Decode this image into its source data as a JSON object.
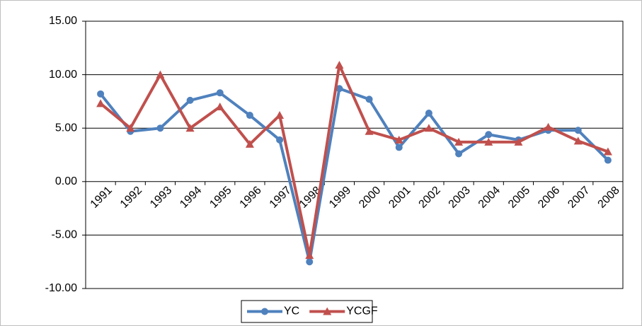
{
  "chart_data": {
    "type": "line",
    "categories": [
      "1991",
      "1992",
      "1993",
      "1994",
      "1995",
      "1996",
      "1997",
      "1998",
      "1999",
      "2000",
      "2001",
      "2002",
      "2003",
      "2004",
      "2005",
      "2006",
      "2007",
      "2008"
    ],
    "series": [
      {
        "name": "YC",
        "color": "#4f81bd",
        "marker": "circle",
        "values": [
          8.2,
          4.7,
          5.0,
          7.6,
          8.3,
          6.2,
          3.9,
          -7.5,
          8.7,
          7.7,
          3.2,
          6.4,
          2.6,
          4.4,
          3.9,
          4.8,
          4.8,
          2.0
        ]
      },
      {
        "name": "YCGF",
        "color": "#c0504d",
        "marker": "triangle",
        "values": [
          7.3,
          5.0,
          10.0,
          5.0,
          7.0,
          3.5,
          6.2,
          -6.9,
          10.9,
          4.7,
          3.9,
          5.0,
          3.7,
          3.7,
          3.7,
          5.1,
          3.8,
          2.8
        ]
      }
    ],
    "ylim": [
      -10,
      15
    ],
    "yticks": [
      {
        "value": -10,
        "label": "-10.00"
      },
      {
        "value": -5,
        "label": "-5.00"
      },
      {
        "value": 0,
        "label": "0.00"
      },
      {
        "value": 5,
        "label": "5.00"
      },
      {
        "value": 10,
        "label": "10.00"
      },
      {
        "value": 15,
        "label": "15.00"
      }
    ],
    "grid": true,
    "legend": "bottom"
  }
}
